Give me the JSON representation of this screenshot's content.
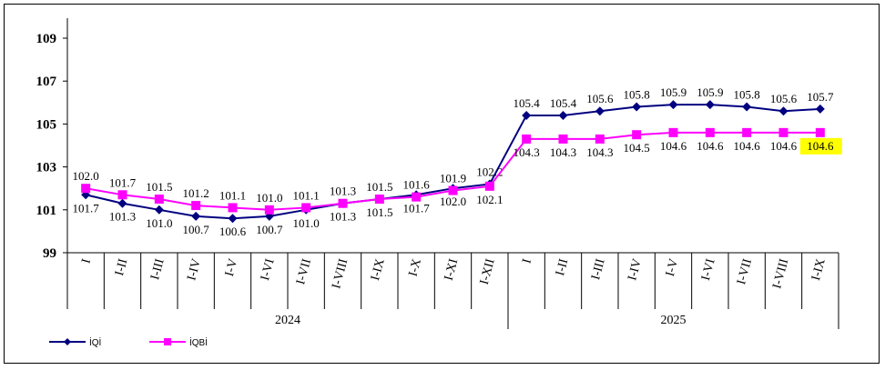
{
  "chart_data": {
    "type": "line",
    "categories": [
      "I",
      "I-II",
      "I-III",
      "I-IV",
      "I-V",
      "I-VI",
      "I-VII",
      "I-VIII",
      "I-IX",
      "I-X",
      "I-XI",
      "I-XII",
      "I",
      "I-II",
      "I-III",
      "I-IV",
      "I-V",
      "I-VI",
      "I-VII",
      "I-VIII",
      "I-IX"
    ],
    "groups": [
      {
        "label": "2024",
        "count": 12
      },
      {
        "label": "2025",
        "count": 9
      }
    ],
    "series": [
      {
        "name": "İQİ",
        "color": "#000080",
        "marker": "diamond",
        "values": [
          101.7,
          101.3,
          101.0,
          100.7,
          100.6,
          100.7,
          101.0,
          101.3,
          101.5,
          101.7,
          102.0,
          102.2,
          105.4,
          105.4,
          105.6,
          105.8,
          105.9,
          105.9,
          105.8,
          105.6,
          105.7
        ]
      },
      {
        "name": "İQBİ",
        "color": "#FF00FF",
        "marker": "square",
        "values": [
          102.0,
          101.7,
          101.5,
          101.2,
          101.1,
          101.0,
          101.1,
          101.3,
          101.5,
          101.6,
          101.9,
          102.1,
          104.3,
          104.3,
          104.3,
          104.5,
          104.6,
          104.6,
          104.6,
          104.6,
          104.6
        ]
      }
    ],
    "ylim": [
      99,
      110
    ],
    "yticks": [
      "99",
      "101",
      "103",
      "105",
      "107",
      "109"
    ],
    "highlight": {
      "series": 1,
      "index": 20,
      "color": "#FFFF00"
    },
    "legend_position": "bottom-left",
    "title": "",
    "xlabel": "",
    "ylabel": ""
  }
}
